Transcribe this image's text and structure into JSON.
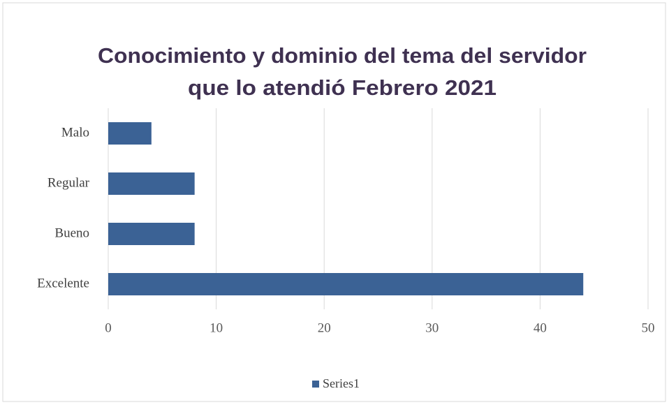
{
  "chart_data": {
    "type": "bar",
    "orientation": "horizontal",
    "title": [
      "Conocimiento y dominio del tema del servidor",
      "que lo atendió Febrero 2021"
    ],
    "categories": [
      "Excelente",
      "Bueno",
      "Regular",
      "Malo"
    ],
    "series": [
      {
        "name": "Series1",
        "color": "#3b6295",
        "values": [
          44,
          8,
          8,
          4
        ]
      }
    ],
    "xlim": [
      0,
      50
    ],
    "xticks": [
      0,
      10,
      20,
      30,
      40,
      50
    ],
    "grid": true,
    "legend": "bottom"
  }
}
